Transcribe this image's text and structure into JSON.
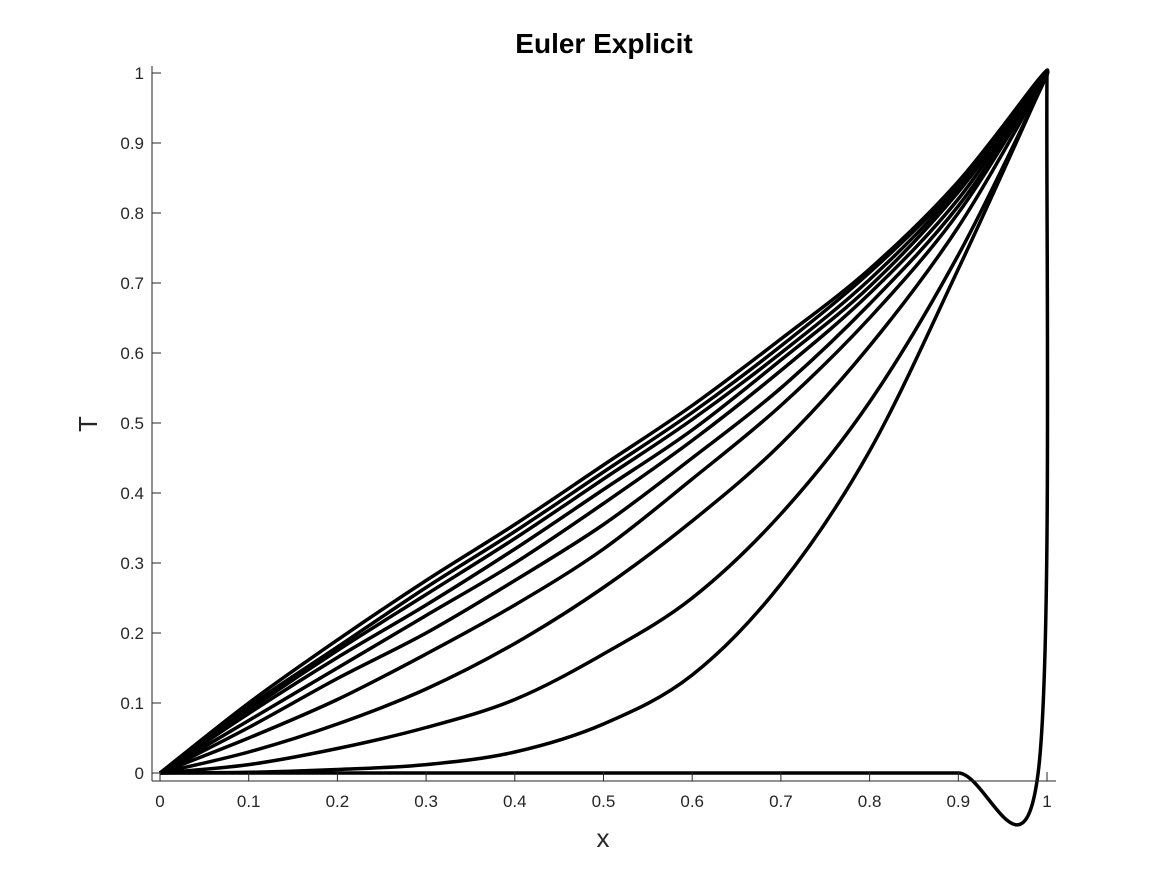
{
  "chart_data": {
    "type": "line",
    "title": "Euler Explicit",
    "xlabel": "x",
    "ylabel": "T",
    "xlim": [
      0,
      1
    ],
    "ylim": [
      0,
      1
    ],
    "xticks": [
      "0",
      "0.1",
      "0.2",
      "0.3",
      "0.4",
      "0.5",
      "0.6",
      "0.7",
      "0.8",
      "0.9",
      "1"
    ],
    "yticks": [
      "0",
      "0.1",
      "0.2",
      "0.3",
      "0.4",
      "0.5",
      "0.6",
      "0.7",
      "0.8",
      "0.9",
      "1"
    ],
    "grid": false,
    "line_color": "#000000",
    "x": [
      0,
      0.1,
      0.2,
      0.3,
      0.4,
      0.5,
      0.6,
      0.7,
      0.8,
      0.9,
      0.99,
      1
    ],
    "series": [
      {
        "values": [
          0,
          0,
          0,
          0,
          0,
          0,
          0,
          0,
          0,
          0,
          0,
          1
        ]
      },
      {
        "values": [
          0,
          0.001,
          0.005,
          0.012,
          0.03,
          0.07,
          0.14,
          0.27,
          0.46,
          0.72,
          0.97,
          1
        ]
      },
      {
        "values": [
          0,
          0.012,
          0.035,
          0.065,
          0.105,
          0.17,
          0.25,
          0.37,
          0.53,
          0.74,
          0.97,
          1
        ]
      },
      {
        "values": [
          0,
          0.03,
          0.07,
          0.12,
          0.185,
          0.265,
          0.36,
          0.47,
          0.61,
          0.78,
          0.975,
          1
        ]
      },
      {
        "values": [
          0,
          0.05,
          0.105,
          0.17,
          0.24,
          0.32,
          0.42,
          0.525,
          0.65,
          0.8,
          0.98,
          1
        ]
      },
      {
        "values": [
          0,
          0.065,
          0.135,
          0.2,
          0.275,
          0.355,
          0.45,
          0.55,
          0.67,
          0.81,
          0.98,
          1
        ]
      },
      {
        "values": [
          0,
          0.075,
          0.15,
          0.225,
          0.3,
          0.385,
          0.475,
          0.575,
          0.685,
          0.82,
          0.985,
          1
        ]
      },
      {
        "values": [
          0,
          0.085,
          0.165,
          0.24,
          0.32,
          0.405,
          0.49,
          0.59,
          0.695,
          0.83,
          0.985,
          1
        ]
      },
      {
        "values": [
          0,
          0.09,
          0.175,
          0.255,
          0.335,
          0.42,
          0.505,
          0.6,
          0.705,
          0.835,
          0.985,
          1
        ]
      },
      {
        "values": [
          0,
          0.095,
          0.18,
          0.265,
          0.345,
          0.43,
          0.515,
          0.61,
          0.715,
          0.84,
          0.985,
          1
        ]
      },
      {
        "values": [
          0,
          0.1,
          0.19,
          0.275,
          0.355,
          0.44,
          0.525,
          0.62,
          0.72,
          0.845,
          0.99,
          1
        ]
      }
    ]
  }
}
